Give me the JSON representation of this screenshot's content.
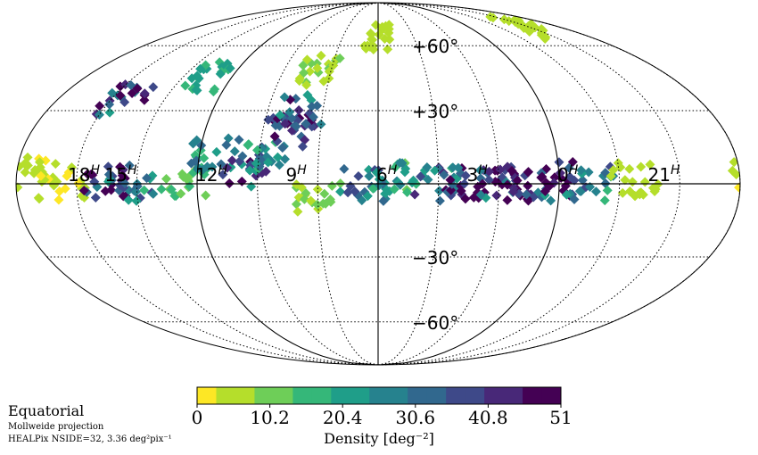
{
  "chart_data": {
    "type": "heatmap",
    "projection": "Mollweide",
    "coordinate_frame": "Equatorial",
    "grid": true,
    "ra_tick_labels": [
      "18^H",
      "15^H",
      "12^H",
      "9^H",
      "6^H",
      "3^H",
      "0^H",
      "21^H"
    ],
    "dec_tick_labels": [
      "+60°",
      "+30°",
      "−30°",
      "−60°"
    ],
    "colorbar": {
      "label": "Density [deg⁻²]",
      "min": 0,
      "max": 51,
      "ticks": [
        "0",
        "10.2",
        "20.4",
        "30.6",
        "40.8",
        "51"
      ],
      "colormap": [
        "#fde725",
        "#b5de2b",
        "#6ece58",
        "#35b779",
        "#1f9e89",
        "#26828e",
        "#31688e",
        "#3e4989",
        "#482878",
        "#440154"
      ],
      "n_levels": 19
    },
    "density_regions": [
      {
        "ra_h": 17.5,
        "dec": 5,
        "value": 4
      },
      {
        "ra_h": 16.5,
        "dec": 0,
        "value": 3
      },
      {
        "ra_h": 15.0,
        "dec": 1,
        "value": 46
      },
      {
        "ra_h": 14.2,
        "dec": 0,
        "value": 30
      },
      {
        "ra_h": 12.5,
        "dec": 2,
        "value": 14
      },
      {
        "ra_h": 11.5,
        "dec": 12,
        "value": 25
      },
      {
        "ra_h": 10.5,
        "dec": 5,
        "value": 38
      },
      {
        "ra_h": 9.8,
        "dec": 10,
        "value": 28
      },
      {
        "ra_h": 9.2,
        "dec": 22,
        "value": 44
      },
      {
        "ra_h": 8.8,
        "dec": 30,
        "value": 36
      },
      {
        "ra_h": 8.5,
        "dec": 48,
        "value": 8
      },
      {
        "ra_h": 8.0,
        "dec": -5,
        "value": 9
      },
      {
        "ra_h": 6.5,
        "dec": 0,
        "value": 30
      },
      {
        "ra_h": 5.5,
        "dec": 2,
        "value": 22
      },
      {
        "ra_h": 4.0,
        "dec": 0,
        "value": 32
      },
      {
        "ra_h": 3.0,
        "dec": 0,
        "value": 50
      },
      {
        "ra_h": 2.0,
        "dec": 0,
        "value": 40
      },
      {
        "ra_h": 1.0,
        "dec": 0,
        "value": 48
      },
      {
        "ra_h": 0.3,
        "dec": 2,
        "value": 42
      },
      {
        "ra_h": 23.0,
        "dec": 0,
        "value": 30
      },
      {
        "ra_h": 21.5,
        "dec": 2,
        "value": 6
      },
      {
        "ra_h": 13.0,
        "dec": 45,
        "value": 18
      },
      {
        "ra_h": 15.5,
        "dec": 35,
        "value": 40
      },
      {
        "ra_h": 6.0,
        "dec": 65,
        "value": 5
      },
      {
        "ra_h": 20.0,
        "dec": 70,
        "value": 6
      }
    ]
  },
  "footer": {
    "frame_title": "Equatorial",
    "projection_label": "Mollweide projection",
    "resolution_label": "HEALPix NSIDE=32, 3.36 deg²pix⁻¹"
  }
}
